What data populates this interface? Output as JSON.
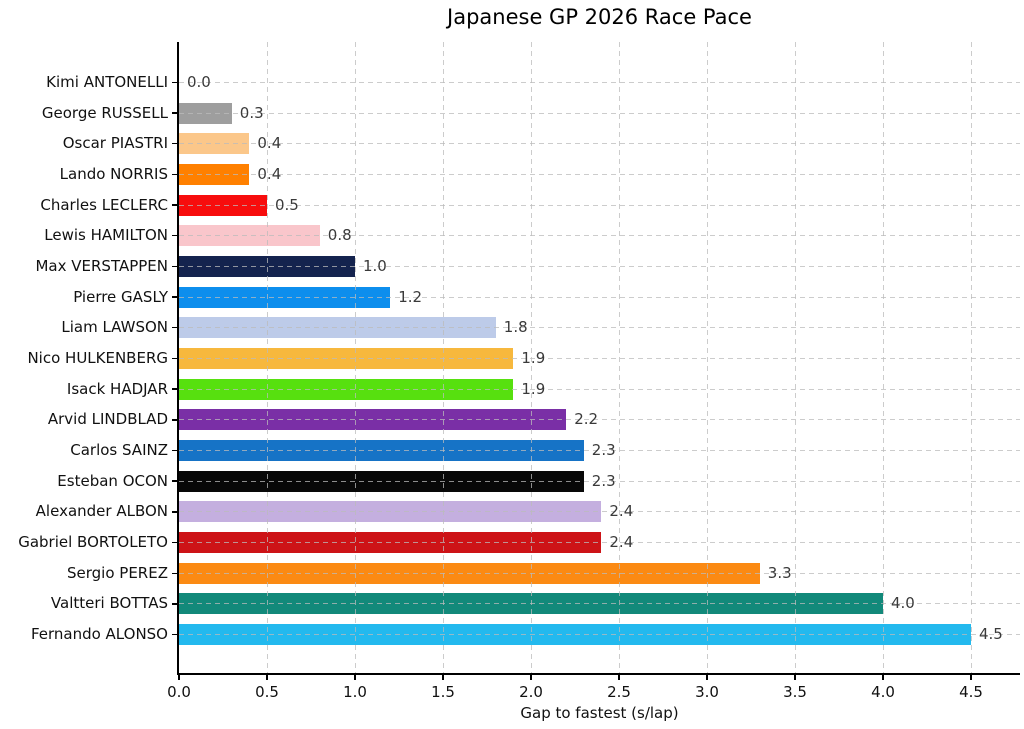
{
  "chart_data": {
    "type": "bar",
    "orientation": "horizontal",
    "title": "Japanese GP 2026 Race Pace",
    "xlabel": "Gap to fastest (s/lap)",
    "ylabel": "",
    "xlim": [
      0,
      4.77
    ],
    "xticks": [
      0.0,
      0.5,
      1.0,
      1.5,
      2.0,
      2.5,
      3.0,
      3.5,
      4.0,
      4.5
    ],
    "grid": true,
    "grid_style": "dashed, drawn over bars",
    "legend": "none",
    "bars": [
      {
        "driver": "Kimi ANTONELLI",
        "value": 0.0,
        "label": "0.0",
        "color": null
      },
      {
        "driver": "George RUSSELL",
        "value": 0.3,
        "label": "0.3",
        "color": "#9e9e9e"
      },
      {
        "driver": "Oscar PIASTRI",
        "value": 0.4,
        "label": "0.4",
        "color": "#fbc78a"
      },
      {
        "driver": "Lando NORRIS",
        "value": 0.4,
        "label": "0.4",
        "color": "#ff8000"
      },
      {
        "driver": "Charles LECLERC",
        "value": 0.5,
        "label": "0.5",
        "color": "#f70d0d"
      },
      {
        "driver": "Lewis HAMILTON",
        "value": 0.8,
        "label": "0.8",
        "color": "#f9c6cb"
      },
      {
        "driver": "Max VERSTAPPEN",
        "value": 1.0,
        "label": "1.0",
        "color": "#14234e"
      },
      {
        "driver": "Pierre GASLY",
        "value": 1.2,
        "label": "1.2",
        "color": "#0d8eed"
      },
      {
        "driver": "Liam LAWSON",
        "value": 1.8,
        "label": "1.8",
        "color": "#bdcbe9"
      },
      {
        "driver": "Nico HULKENBERG",
        "value": 1.9,
        "label": "1.9",
        "color": "#f7b83d"
      },
      {
        "driver": "Isack HADJAR",
        "value": 1.9,
        "label": "1.9",
        "color": "#57e00f"
      },
      {
        "driver": "Arvid LINDBLAD",
        "value": 2.2,
        "label": "2.2",
        "color": "#7a2fa6"
      },
      {
        "driver": "Carlos SAINZ",
        "value": 2.3,
        "label": "2.3",
        "color": "#1673c6"
      },
      {
        "driver": "Esteban OCON",
        "value": 2.3,
        "label": "2.3",
        "color": "#080808"
      },
      {
        "driver": "Alexander ALBON",
        "value": 2.4,
        "label": "2.4",
        "color": "#c4afdf"
      },
      {
        "driver": "Gabriel BORTOLETO",
        "value": 2.4,
        "label": "2.4",
        "color": "#cd1317"
      },
      {
        "driver": "Sergio PEREZ",
        "value": 3.3,
        "label": "3.3",
        "color": "#fb8a13"
      },
      {
        "driver": "Valtteri BOTTAS",
        "value": 4.0,
        "label": "4.0",
        "color": "#12897a"
      },
      {
        "driver": "Fernando ALONSO",
        "value": 4.5,
        "label": "4.5",
        "color": "#23b9ee"
      }
    ],
    "colors": {
      "background": "#ffffff",
      "spine": "#000000",
      "grid": "#bbbbbb",
      "title_text": "#000000",
      "tick_text": "#111111",
      "value_text": "#3a3a3a"
    }
  }
}
